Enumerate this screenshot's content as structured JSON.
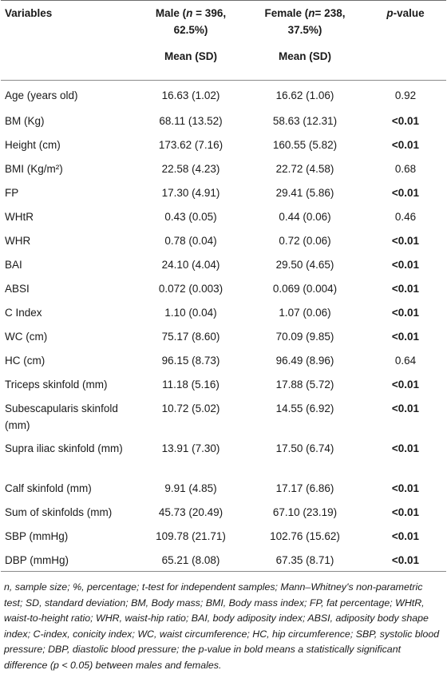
{
  "table": {
    "headers": {
      "variables": "Variables",
      "male_line1": "Male (",
      "male_n": "n",
      "male_line1_rest": " = 396,",
      "male_line2": "62.5%)",
      "female_line1": "Female (",
      "female_n": "n",
      "female_line1_rest": "= 238,",
      "female_line2": "37.5%)",
      "p_italic": "p",
      "p_rest": "-value",
      "male_sub": "Mean (SD)",
      "female_sub": "Mean (SD)"
    },
    "rows": [
      {
        "variable": "Age (years old)",
        "male": "16.63 (1.02)",
        "female": "16.62 (1.06)",
        "p": "0.92",
        "bold": false
      },
      {
        "variable": "BM (Kg)",
        "male": "68.11 (13.52)",
        "female": "58.63 (12.31)",
        "p": "<0.01",
        "bold": true
      },
      {
        "variable": "Height (cm)",
        "male": "173.62 (7.16)",
        "female": "160.55 (5.82)",
        "p": "<0.01",
        "bold": true
      },
      {
        "variable": "BMI (Kg/m²)",
        "male": "22.58 (4.23)",
        "female": "22.72 (4.58)",
        "p": "0.68",
        "bold": false
      },
      {
        "variable": "FP",
        "male": "17.30 (4.91)",
        "female": "29.41 (5.86)",
        "p": "<0.01",
        "bold": true
      },
      {
        "variable": "WHtR",
        "male": "0.43 (0.05)",
        "female": "0.44 (0.06)",
        "p": "0.46",
        "bold": false
      },
      {
        "variable": "WHR",
        "male": "0.78 (0.04)",
        "female": "0.72 (0.06)",
        "p": "<0.01",
        "bold": true
      },
      {
        "variable": "BAI",
        "male": "24.10 (4.04)",
        "female": "29.50 (4.65)",
        "p": "<0.01",
        "bold": true
      },
      {
        "variable": "ABSI",
        "male": "0.072 (0.003)",
        "female": "0.069 (0.004)",
        "p": "<0.01",
        "bold": true
      },
      {
        "variable": "C Index",
        "male": "1.10 (0.04)",
        "female": "1.07 (0.06)",
        "p": "<0.01",
        "bold": true
      },
      {
        "variable": "WC (cm)",
        "male": "75.17 (8.60)",
        "female": "70.09 (9.85)",
        "p": "<0.01",
        "bold": true
      },
      {
        "variable": "HC (cm)",
        "male": "96.15 (8.73)",
        "female": "96.49 (8.96)",
        "p": "0.64",
        "bold": false
      },
      {
        "variable": "Triceps skinfold (mm)",
        "male": "11.18 (5.16)",
        "female": "17.88 (5.72)",
        "p": "<0.01",
        "bold": true
      },
      {
        "variable": "Subescapularis skinfold (mm)",
        "male": "10.72 (5.02)",
        "female": "14.55 (6.92)",
        "p": "<0.01",
        "bold": true,
        "tall": true
      },
      {
        "variable": "Supra iliac skinfold (mm)",
        "male": "13.91 (7.30)",
        "female": "17.50 (6.74)",
        "p": "<0.01",
        "bold": true,
        "tall": true
      },
      {
        "variable": "Calf skinfold (mm)",
        "male": "9.91 (4.85)",
        "female": "17.17 (6.86)",
        "p": "<0.01",
        "bold": true
      },
      {
        "variable": "Sum of skinfolds (mm)",
        "male": "45.73 (20.49)",
        "female": "67.10 (23.19)",
        "p": "<0.01",
        "bold": true
      },
      {
        "variable": "SBP (mmHg)",
        "male": "109.78 (21.71)",
        "female": "102.76 (15.62)",
        "p": "<0.01",
        "bold": true
      },
      {
        "variable": "DBP (mmHg)",
        "male": "65.21 (8.08)",
        "female": "67.35 (8.71)",
        "p": "<0.01",
        "bold": true
      }
    ]
  },
  "footnote": "n, sample size; %, percentage; t-test for independent samples; Mann–Whitney's non-parametric test; SD, standard deviation; BM, Body mass; BMI, Body mass index; FP, fat percentage; WHtR, waist-to-height ratio; WHR, waist-hip ratio; BAI, body adiposity index; ABSI, adiposity body shape index; C-index, conicity index; WC, waist circumference; HC, hip circumference; SBP, systolic blood pressure; DBP, diastolic blood pressure; the p-value in bold means a statistically significant difference (p < 0.05) between males and females."
}
